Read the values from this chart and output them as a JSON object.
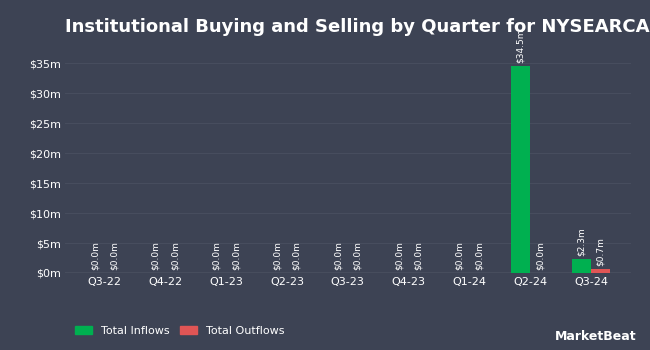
{
  "title": "Institutional Buying and Selling by Quarter for NYSEARCA:MBS",
  "quarters": [
    "Q3-22",
    "Q4-22",
    "Q1-23",
    "Q2-23",
    "Q3-23",
    "Q4-23",
    "Q1-24",
    "Q2-24",
    "Q3-24"
  ],
  "inflows": [
    0.0,
    0.0,
    0.0,
    0.0,
    0.0,
    0.0,
    0.0,
    34.5,
    2.3
  ],
  "outflows": [
    0.0,
    0.0,
    0.0,
    0.0,
    0.0,
    0.0,
    0.0,
    0.0,
    0.7
  ],
  "inflow_labels": [
    "$0.0m",
    "$0.0m",
    "$0.0m",
    "$0.0m",
    "$0.0m",
    "$0.0m",
    "$0.0m",
    "$34.5m",
    "$2.3m"
  ],
  "outflow_labels": [
    "$0.0m",
    "$0.0m",
    "$0.0m",
    "$0.0m",
    "$0.0m",
    "$0.0m",
    "$0.0m",
    "$0.0m",
    "$0.7m"
  ],
  "inflow_color": "#00b050",
  "outflow_color": "#e05555",
  "background_color": "#3d4354",
  "plot_bg_color": "#3d4354",
  "text_color": "#ffffff",
  "grid_color": "#4a5060",
  "ylabel_ticks": [
    "$0m",
    "$5m",
    "$10m",
    "$15m",
    "$20m",
    "$25m",
    "$30m",
    "$35m"
  ],
  "ylabel_values": [
    0,
    5,
    10,
    15,
    20,
    25,
    30,
    35
  ],
  "ylim": [
    0,
    38
  ],
  "bar_width": 0.32,
  "title_fontsize": 13,
  "tick_fontsize": 8,
  "label_fontsize": 6.5,
  "legend_label_inflow": "Total Inflows",
  "legend_label_outflow": "Total Outflows"
}
